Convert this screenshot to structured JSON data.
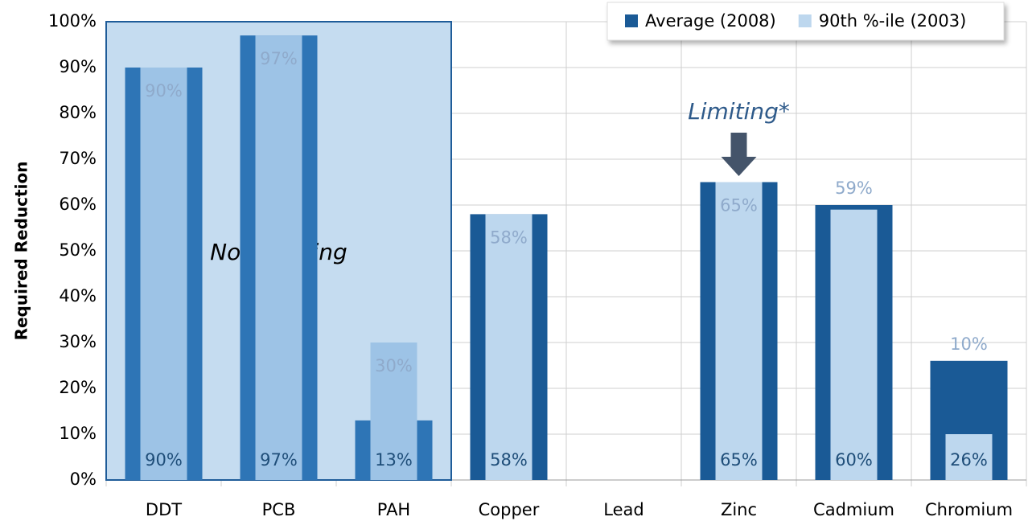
{
  "chart_data": {
    "type": "bar",
    "y_label": "Required Reduction",
    "categories": [
      "DDT",
      "PCB",
      "PAH",
      "Copper",
      "Lead",
      "Zinc",
      "Cadmium",
      "Chromium"
    ],
    "series": [
      {
        "name": "Average (2008)",
        "color": "#1a5a96",
        "values": [
          90,
          97,
          13,
          58,
          null,
          65,
          60,
          26
        ],
        "value_labels": [
          "90%",
          "97%",
          "13%",
          "58%",
          null,
          "65%",
          "60%",
          "26%"
        ]
      },
      {
        "name": "90th %-ile (2003)",
        "color": "#bdd7ee",
        "values": [
          90,
          97,
          30,
          58,
          null,
          65,
          59,
          10
        ],
        "value_labels": [
          "90%",
          "97%",
          "30%",
          "58%",
          null,
          "65%",
          "59%",
          "10%"
        ]
      }
    ],
    "annotations": [
      "Not Limiting",
      "Limiting*"
    ],
    "ylim": [
      0,
      100
    ],
    "yticks": [
      {
        "value": 0,
        "label": "0%"
      },
      {
        "value": 10,
        "label": "10%"
      },
      {
        "value": 20,
        "label": "20%"
      },
      {
        "value": 30,
        "label": "30%"
      },
      {
        "value": 40,
        "label": "40%"
      },
      {
        "value": 50,
        "label": "50%"
      },
      {
        "value": 60,
        "label": "60%"
      },
      {
        "value": 70,
        "label": "70%"
      },
      {
        "value": 80,
        "label": "80%"
      },
      {
        "value": 90,
        "label": "90%"
      },
      {
        "value": 100,
        "label": "100%"
      }
    ],
    "grid": true,
    "legend": "top-right"
  }
}
